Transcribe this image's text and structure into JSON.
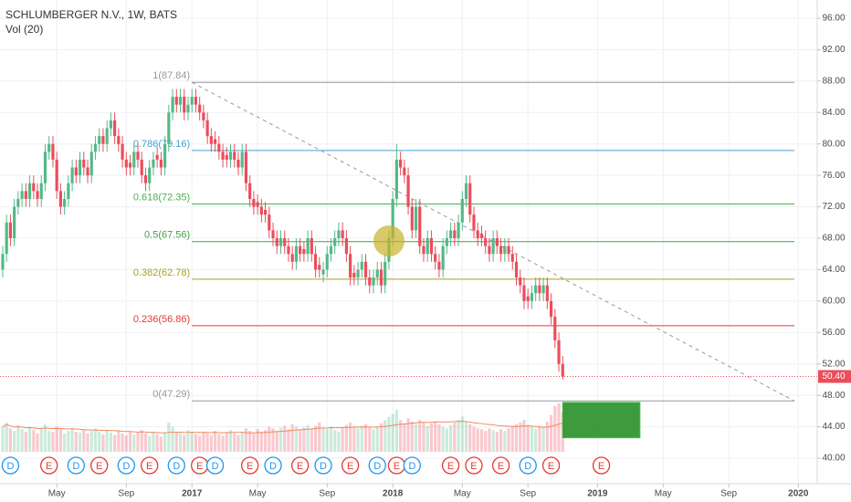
{
  "chart_data": {
    "type": "candlestick",
    "title": "SCHLUMBERGER N.V., 1W, BATS",
    "subtitle": "Vol (20)",
    "open": [
      64,
      66,
      70,
      68,
      72,
      73,
      74,
      73,
      75,
      74,
      73,
      75,
      79,
      80,
      78,
      74,
      72,
      73,
      75,
      77,
      76,
      78,
      77,
      76,
      79,
      80,
      81,
      80,
      82,
      83,
      81,
      80,
      78,
      77.6,
      77,
      79,
      78,
      76,
      75,
      77,
      78.6,
      78,
      77,
      80,
      84,
      86,
      85,
      86,
      84,
      85,
      86,
      85,
      84,
      83,
      81,
      80.6,
      80,
      79,
      78.6,
      78,
      79,
      78,
      77,
      79,
      75,
      73,
      72.6,
      72,
      71.6,
      71,
      69,
      68,
      67,
      68,
      67,
      66,
      65,
      67,
      66.6,
      66,
      68,
      66,
      64.6,
      63.4,
      64,
      66,
      67,
      68,
      69,
      68,
      66,
      63.6,
      63,
      64,
      65,
      63,
      62,
      63,
      64,
      62,
      65,
      68,
      73,
      78,
      77,
      76,
      72,
      69,
      72,
      67,
      66,
      68,
      66,
      65,
      64,
      67,
      68,
      69,
      68,
      70,
      73,
      75,
      71,
      69,
      68.6,
      68,
      67,
      66,
      68,
      67,
      66,
      67,
      66,
      65,
      63,
      62,
      60.6,
      60,
      61,
      62,
      61,
      62,
      60,
      58,
      55,
      52
    ],
    "high": [
      67,
      71,
      71,
      73,
      74,
      75,
      75,
      76,
      76,
      75,
      76,
      80,
      81,
      81,
      79,
      75,
      74,
      76,
      78,
      78,
      79,
      79,
      78,
      80,
      81,
      82,
      82,
      83,
      84,
      84,
      82,
      81,
      79,
      78.6,
      80,
      80,
      79,
      77,
      78,
      79,
      79.6,
      79,
      81,
      85,
      87,
      87,
      87,
      87,
      86,
      87,
      87,
      86,
      85,
      84,
      82,
      81.6,
      81,
      80,
      79.6,
      80,
      80,
      79,
      80,
      80,
      76,
      74,
      73.6,
      73,
      72.6,
      72,
      70,
      69,
      69,
      69,
      68,
      67,
      68,
      68,
      67.6,
      69,
      69,
      67,
      65.6,
      65,
      67,
      68,
      69,
      70,
      70,
      69,
      67,
      64.6,
      65,
      66,
      66,
      64,
      64,
      65,
      65,
      66,
      69,
      74,
      80,
      79,
      78,
      77,
      73,
      73,
      73,
      68,
      69,
      69,
      67,
      66,
      68,
      69,
      70,
      70,
      71,
      74,
      76,
      76,
      72,
      70,
      69.6,
      69,
      68,
      69,
      69,
      68,
      68,
      68,
      67,
      66,
      64,
      63,
      61.6,
      62,
      63,
      63,
      63,
      63,
      61,
      59,
      56,
      53
    ],
    "low": [
      63,
      65,
      67,
      67,
      71,
      72,
      72,
      72,
      73,
      72,
      72,
      74,
      78,
      77,
      73,
      71,
      71,
      72,
      74,
      75,
      75,
      76,
      75,
      75,
      78,
      79,
      79,
      79,
      81,
      80,
      79,
      77,
      76,
      76,
      76,
      77,
      75,
      74,
      74,
      76,
      77,
      76,
      76,
      79,
      83,
      84,
      84,
      83,
      83,
      84,
      84,
      83,
      82,
      80,
      79,
      79,
      78,
      77,
      77,
      77,
      77,
      76,
      76,
      74,
      72,
      71,
      71,
      70,
      70,
      68,
      67,
      66,
      66,
      66,
      65,
      64,
      64,
      65,
      65,
      65,
      65,
      63,
      63,
      62.4,
      63,
      65,
      66,
      67,
      67,
      65,
      62,
      62,
      62,
      63,
      62,
      61,
      61,
      62,
      61,
      61,
      64,
      67,
      72,
      76,
      75,
      71,
      68,
      68,
      66,
      65,
      65,
      65,
      64,
      63,
      63,
      66,
      67,
      67,
      67,
      69,
      72,
      70,
      68,
      67,
      67,
      66,
      65,
      65,
      66,
      65,
      65,
      65,
      64,
      62,
      61,
      59,
      59,
      59,
      60,
      60,
      60,
      59,
      57,
      54,
      51,
      50
    ],
    "close": [
      66,
      70,
      68,
      72,
      73,
      74,
      73,
      75,
      74,
      73,
      75,
      79,
      80,
      78,
      74,
      72,
      73,
      75,
      77,
      76,
      78,
      77,
      76,
      79,
      80,
      81,
      80,
      82,
      83,
      81,
      80,
      78,
      77,
      77,
      79,
      78,
      76,
      75,
      77,
      78,
      78,
      77,
      80,
      84,
      86,
      85,
      86,
      84,
      85,
      86,
      85,
      84,
      83,
      81,
      80,
      80,
      79,
      78,
      78,
      79,
      78,
      77,
      79,
      75,
      73,
      72,
      72,
      71,
      71,
      69,
      68,
      67,
      68,
      67,
      66,
      65,
      67,
      66,
      66,
      68,
      66,
      64,
      64,
      64,
      66,
      67,
      68,
      69,
      68,
      66,
      63,
      63,
      64,
      65,
      63,
      62,
      63,
      64,
      62,
      65,
      68,
      73,
      78,
      77,
      76,
      72,
      69,
      72,
      67,
      66,
      68,
      66,
      65,
      64,
      67,
      68,
      69,
      68,
      70,
      73,
      75,
      71,
      69,
      68,
      68,
      67,
      66,
      68,
      67,
      66,
      67,
      66,
      65,
      63,
      62,
      60,
      60,
      61,
      62,
      61,
      62,
      60,
      58,
      55,
      52,
      50.4
    ],
    "volume": [
      30,
      35,
      28,
      25,
      32,
      27,
      24,
      30,
      26,
      22,
      28,
      33,
      25,
      24,
      30,
      27,
      22,
      25,
      28,
      24,
      23,
      26,
      22,
      25,
      28,
      24,
      21,
      26,
      23,
      20,
      25,
      22,
      20,
      24,
      21,
      23,
      26,
      22,
      19,
      24,
      21,
      18,
      23,
      35,
      30,
      24,
      22,
      20,
      26,
      23,
      21,
      19,
      24,
      22,
      20,
      25,
      21,
      19,
      23,
      26,
      22,
      20,
      24,
      28,
      25,
      23,
      27,
      24,
      26,
      30,
      28,
      25,
      29,
      31,
      27,
      33,
      30,
      26,
      29,
      32,
      28,
      31,
      35,
      29,
      27,
      30,
      26,
      24,
      28,
      32,
      35,
      30,
      28,
      31,
      33,
      29,
      27,
      30,
      34,
      38,
      42,
      45,
      50,
      38,
      34,
      40,
      36,
      33,
      38,
      35,
      31,
      34,
      36,
      33,
      30,
      28,
      32,
      35,
      38,
      42,
      36,
      33,
      30,
      28,
      27,
      25,
      28,
      26,
      24,
      27,
      25,
      28,
      30,
      33,
      35,
      38,
      32,
      30,
      28,
      31,
      30,
      36,
      44,
      55,
      58,
      48
    ],
    "up_color": "#53b987",
    "down_color": "#eb4d5c",
    "xlim": [
      -0.7,
      210.9
    ],
    "xticks": [
      {
        "value": 14,
        "label": "May"
      },
      {
        "value": 32,
        "label": "Sep"
      },
      {
        "value": 49,
        "label": "2017"
      },
      {
        "value": 66,
        "label": "May"
      },
      {
        "value": 84,
        "label": "Sep"
      },
      {
        "value": 101,
        "label": "2018"
      },
      {
        "value": 119,
        "label": "May"
      },
      {
        "value": 136,
        "label": "Sep"
      },
      {
        "value": 154,
        "label": "2019"
      },
      {
        "value": 171,
        "label": "May"
      },
      {
        "value": 188,
        "label": "Sep"
      },
      {
        "value": 206,
        "label": "2020"
      }
    ],
    "ylim": [
      36.75,
      98.32
    ],
    "yticks": [
      {
        "value": 40,
        "label": "40.00"
      },
      {
        "value": 44,
        "label": "44.00"
      },
      {
        "value": 48,
        "label": "48.00"
      },
      {
        "value": 52,
        "label": "52.00"
      },
      {
        "value": 56,
        "label": "56.00"
      },
      {
        "value": 60,
        "label": "60.00"
      },
      {
        "value": 64,
        "label": "64.00"
      },
      {
        "value": 68,
        "label": "68.00"
      },
      {
        "value": 72,
        "label": "72.00"
      },
      {
        "value": 76,
        "label": "76.00"
      },
      {
        "value": 80,
        "label": "80.00"
      },
      {
        "value": 84,
        "label": "84.00"
      },
      {
        "value": 88,
        "label": "88.00"
      },
      {
        "value": 92,
        "label": "92.00"
      },
      {
        "value": 96,
        "label": "96.00"
      }
    ],
    "grid": true,
    "last_price": {
      "value": 50.4,
      "label": "50.40"
    },
    "fib_levels": [
      {
        "label": "1(87.84)",
        "value": 87.84,
        "color": "#9598a1"
      },
      {
        "label": "0.786(79.16)",
        "value": 79.16,
        "color": "#4a9fd4"
      },
      {
        "label": "0.618(72.35)",
        "value": 72.35,
        "color": "#4caf50"
      },
      {
        "label": "0.5(67.56)",
        "value": 67.56,
        "color": "#43a047"
      },
      {
        "label": "0.382(62.78)",
        "value": 62.78,
        "color": "#a5a227"
      },
      {
        "label": "0.236(56.86)",
        "value": 56.86,
        "color": "#e53935"
      },
      {
        "label": "0(47.29)",
        "value": 47.29,
        "color": "#9598a1"
      }
    ],
    "trendline": {
      "x": [
        49,
        205
      ],
      "y": [
        87.84,
        47.29
      ]
    },
    "rectangle": {
      "x": [
        145,
        165
      ],
      "y": [
        47.1,
        42.6
      ]
    },
    "events": [
      {
        "label": "D",
        "x": 2
      },
      {
        "label": "E",
        "x": 12
      },
      {
        "label": "D",
        "x": 19
      },
      {
        "label": "E",
        "x": 25
      },
      {
        "label": "D",
        "x": 32
      },
      {
        "label": "E",
        "x": 38
      },
      {
        "label": "D",
        "x": 45
      },
      {
        "label": "E",
        "x": 51
      },
      {
        "label": "D",
        "x": 55
      },
      {
        "label": "E",
        "x": 64
      },
      {
        "label": "D",
        "x": 70
      },
      {
        "label": "E",
        "x": 77
      },
      {
        "label": "D",
        "x": 83
      },
      {
        "label": "E",
        "x": 90
      },
      {
        "label": "D",
        "x": 97
      },
      {
        "label": "E",
        "x": 102
      },
      {
        "label": "D",
        "x": 106
      },
      {
        "label": "E",
        "x": 116
      },
      {
        "label": "E",
        "x": 122
      },
      {
        "label": "E",
        "x": 129
      },
      {
        "label": "D",
        "x": 136
      },
      {
        "label": "E",
        "x": 142
      },
      {
        "label": "E",
        "x": 155
      }
    ]
  }
}
